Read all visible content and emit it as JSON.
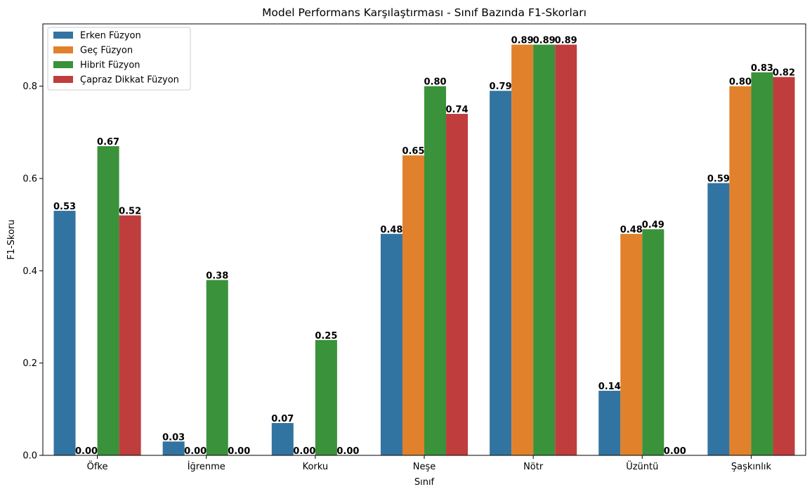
{
  "chart_data": {
    "type": "bar",
    "title": "Model Performans Karşılaştırması - Sınıf Bazında F1-Skorları",
    "xlabel": "Sınıf",
    "ylabel": "F1-Skoru",
    "ylim": [
      0,
      0.935
    ],
    "yticks": [
      "0.0",
      "0.2",
      "0.4",
      "0.6",
      "0.8"
    ],
    "grid": false,
    "legend_position": "top-left",
    "categories": [
      "Öfke",
      "İğrenme",
      "Korku",
      "Neşe",
      "Nötr",
      "Üzüntü",
      "Şaşkınlık"
    ],
    "series": [
      {
        "name": "Erken Füzyon",
        "color": "#3274a1",
        "values": [
          0.53,
          0.03,
          0.07,
          0.48,
          0.79,
          0.14,
          0.59
        ],
        "labels": [
          "0.53",
          "0.03",
          "0.07",
          "0.48",
          "0.79",
          "0.14",
          "0.59"
        ]
      },
      {
        "name": "Geç Füzyon",
        "color": "#e1812c",
        "values": [
          0.0,
          0.0,
          0.0,
          0.65,
          0.89,
          0.48,
          0.8
        ],
        "labels": [
          "0.00",
          "0.00",
          "0.00",
          "0.65",
          "0.89",
          "0.48",
          "0.80"
        ]
      },
      {
        "name": "Hibrit Füzyon",
        "color": "#3a923a",
        "values": [
          0.67,
          0.38,
          0.25,
          0.8,
          0.89,
          0.49,
          0.83
        ],
        "labels": [
          "0.67",
          "0.38",
          "0.25",
          "0.80",
          "0.89",
          "0.49",
          "0.83"
        ]
      },
      {
        "name": "Çapraz Dikkat Füzyon",
        "color": "#c03d3e",
        "values": [
          0.52,
          0.0,
          0.0,
          0.74,
          0.89,
          0.0,
          0.82
        ],
        "labels": [
          "0.52",
          "0.00",
          "0.00",
          "0.74",
          "0.89",
          "0.00",
          "0.82"
        ]
      }
    ]
  }
}
